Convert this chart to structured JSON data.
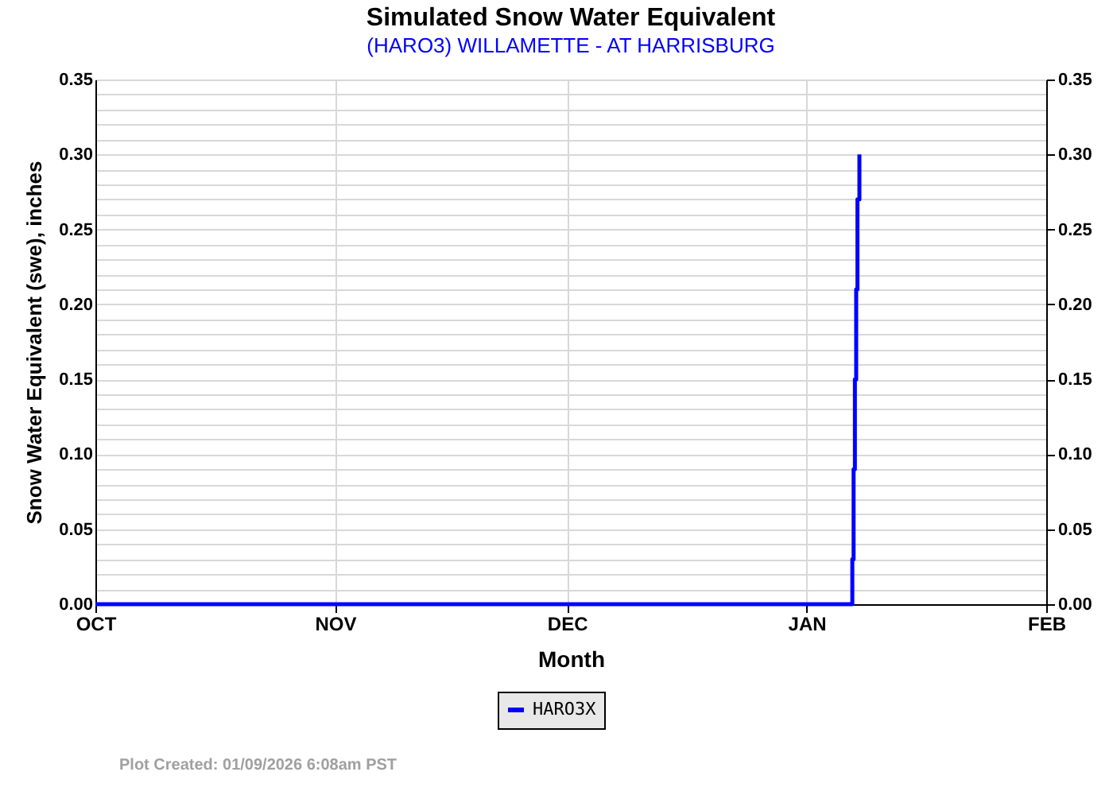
{
  "chart_data": {
    "type": "step",
    "title": "Simulated Snow Water Equivalent",
    "subtitle": "(HARO3) WILLAMETTE - AT HARRISBURG",
    "xlabel": "Month",
    "ylabel": "Snow Water Equivalent (swe),  inches",
    "series": [
      {
        "name": "HARO3X",
        "color": "#0000ff",
        "x": [
          "2025-10-01",
          "2026-01-06T22:00",
          "2026-01-07T02:00",
          "2026-01-07T06:00",
          "2026-01-07T10:00",
          "2026-01-07T14:00",
          "2026-01-07T20:00"
        ],
        "values": [
          0,
          0.03,
          0.09,
          0.15,
          0.21,
          0.27,
          0.3
        ]
      }
    ],
    "xlim": [
      "2025-10-01",
      "2026-02-01"
    ],
    "xticks": [
      {
        "value": "2025-10-01",
        "label": "OCT"
      },
      {
        "value": "2025-11-01",
        "label": "NOV"
      },
      {
        "value": "2025-12-01",
        "label": "DEC"
      },
      {
        "value": "2026-01-01",
        "label": "JAN"
      },
      {
        "value": "2026-02-01",
        "label": "FEB"
      }
    ],
    "ylim": [
      0,
      0.35
    ],
    "yticks": [
      {
        "value": 0,
        "label": "0.00"
      },
      {
        "value": 0.01,
        "label": null
      },
      {
        "value": 0.02,
        "label": null
      },
      {
        "value": 0.03,
        "label": null
      },
      {
        "value": 0.04,
        "label": null
      },
      {
        "value": 0.05,
        "label": "0.05"
      },
      {
        "value": 0.06,
        "label": null
      },
      {
        "value": 0.07,
        "label": null
      },
      {
        "value": 0.08,
        "label": null
      },
      {
        "value": 0.09,
        "label": null
      },
      {
        "value": 0.1,
        "label": "0.10"
      },
      {
        "value": 0.11,
        "label": null
      },
      {
        "value": 0.12,
        "label": null
      },
      {
        "value": 0.13,
        "label": null
      },
      {
        "value": 0.14,
        "label": null
      },
      {
        "value": 0.15,
        "label": "0.15"
      },
      {
        "value": 0.16,
        "label": null
      },
      {
        "value": 0.17,
        "label": null
      },
      {
        "value": 0.18,
        "label": null
      },
      {
        "value": 0.19,
        "label": null
      },
      {
        "value": 0.2,
        "label": "0.20"
      },
      {
        "value": 0.21,
        "label": null
      },
      {
        "value": 0.22,
        "label": null
      },
      {
        "value": 0.23,
        "label": null
      },
      {
        "value": 0.24,
        "label": null
      },
      {
        "value": 0.25,
        "label": "0.25"
      },
      {
        "value": 0.26,
        "label": null
      },
      {
        "value": 0.27,
        "label": null
      },
      {
        "value": 0.28,
        "label": null
      },
      {
        "value": 0.29,
        "label": null
      },
      {
        "value": 0.3,
        "label": "0.30"
      },
      {
        "value": 0.31,
        "label": null
      },
      {
        "value": 0.32,
        "label": null
      },
      {
        "value": 0.33,
        "label": null
      },
      {
        "value": 0.34,
        "label": null
      },
      {
        "value": 0.35,
        "label": "0.35"
      }
    ],
    "y2lim": [
      0,
      0.35
    ],
    "y2ticks": [
      {
        "value": 0,
        "label": "0.00"
      },
      {
        "value": 0.05,
        "label": "0.05"
      },
      {
        "value": 0.1,
        "label": "0.10"
      },
      {
        "value": 0.15,
        "label": "0.15"
      },
      {
        "value": 0.2,
        "label": "0.20"
      },
      {
        "value": 0.25,
        "label": "0.25"
      },
      {
        "value": 0.3,
        "label": "0.30"
      },
      {
        "value": 0.35,
        "label": "0.35"
      }
    ],
    "grid": true,
    "legend": "bottom",
    "line_style": "solid",
    "marker": "none",
    "annotations": [
      "Plot Created: 01/09/2026 6:08am PST"
    ]
  }
}
